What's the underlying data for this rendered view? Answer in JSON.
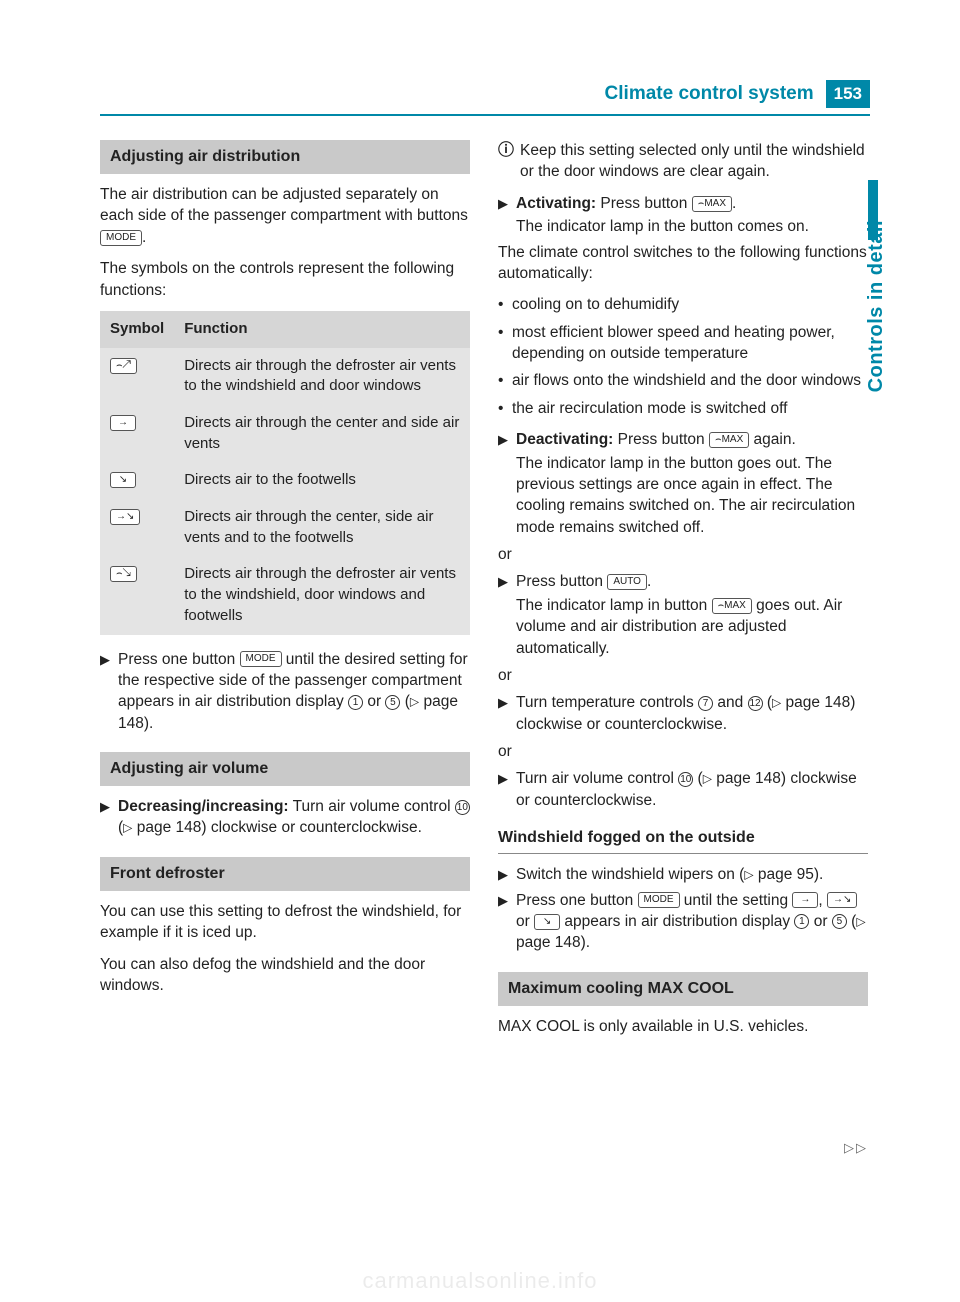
{
  "header": {
    "title": "Climate control system",
    "page_number": "153"
  },
  "side_tab": "Controls in detail",
  "watermark": "carmanualsonline.info",
  "continue_marker": "▷▷",
  "colors": {
    "accent": "#0088a8",
    "section_bg": "#c9c9c9",
    "table_bg": "#e4e4e4",
    "table_header_bg": "#d6d6d6",
    "text": "#222222",
    "page_bg": "#ffffff"
  },
  "icons": {
    "mode": "MODE",
    "auto": "AUTO",
    "defrost_max": "⌢MAX",
    "defrost_windows": "⌢↗",
    "center_side": "→",
    "footwell": "↘",
    "center_footwell": "→↘",
    "defrost_all": "⌢↘"
  },
  "left": {
    "s1": {
      "heading": "Adjusting air distribution",
      "p1": "The air distribution can be adjusted separately on each side of the passenger compartment with buttons ",
      "p1_after": ".",
      "p2": "The symbols on the controls represent the following functions:",
      "table": {
        "h1": "Symbol",
        "h2": "Function",
        "rows": [
          {
            "sym_key": "defrost_windows",
            "fn": "Directs air through the defroster air vents to the windshield and door windows"
          },
          {
            "sym_key": "center_side",
            "fn": "Directs air through the center and side air vents"
          },
          {
            "sym_key": "footwell",
            "fn": "Directs air to the footwells"
          },
          {
            "sym_key": "center_footwell",
            "fn": "Directs air through the center, side air vents and to the footwells"
          },
          {
            "sym_key": "defrost_all",
            "fn": "Directs air through the defroster air vents to the windshield, door windows and footwells"
          }
        ]
      },
      "step1a": "Press one button ",
      "step1b": " until the desired setting for the respective side of the passenger compartment appears in air distribution display ",
      "c1": "1",
      "mid": " or ",
      "c5": "5",
      "step1c": " (",
      "tri": "▷",
      "pg148": " page 148)."
    },
    "s2": {
      "heading": "Adjusting air volume",
      "bold": "Decreasing/increasing:",
      "text1": " Turn air volume control ",
      "c10": "10",
      "text2": " (",
      "pg": " page 148) clockwise or counterclockwise."
    },
    "s3": {
      "heading": "Front defroster",
      "p1": "You can use this setting to defrost the windshield, for example if it is iced up.",
      "p2": "You can also defog the windshield and the door windows."
    }
  },
  "right": {
    "info": "Keep this setting selected only until the windshield or the door windows are clear again.",
    "act": {
      "bold": "Activating:",
      "t1": " Press button ",
      "t2": ".",
      "sub": "The indicator lamp in the button comes on."
    },
    "auto_intro": "The climate control switches to the following functions automatically:",
    "bullets": [
      "cooling on to dehumidify",
      "most efficient blower speed and heating power, depending on outside temperature",
      "air flows onto the windshield and the door windows",
      "the air recirculation mode is switched off"
    ],
    "deact": {
      "bold": "Deactivating:",
      "t1": " Press button ",
      "t2": " again.",
      "sub": "The indicator lamp in the button goes out. The previous settings are once again in effect. The cooling remains switched on. The air recirculation mode remains switched off."
    },
    "or": "or",
    "auto_step": {
      "t1": "Press button ",
      "t2": ".",
      "sub1": "The indicator lamp in button ",
      "sub2": " goes out. Air volume and air distribution are adjusted automatically."
    },
    "temp_step": {
      "t1": "Turn temperature controls ",
      "c7": "7",
      "and": " and ",
      "c12": "12",
      "t2": " (",
      "pg": " page 148) clockwise or counterclockwise."
    },
    "vol_step": {
      "t1": "Turn air volume control ",
      "c10": "10",
      "t2": " (",
      "pg": " page 148) clockwise or counterclockwise."
    },
    "sub": {
      "heading": "Windshield fogged on the outside",
      "s1a": "Switch the windshield wipers on (",
      "s1pg": " page 95).",
      "s2a": "Press one button ",
      "s2b": " until the setting ",
      "comma": ", ",
      "s2or": " or ",
      "s2c": " appears in air distribution display ",
      "c1": "1",
      "mid": " or ",
      "c5": "5",
      "s2d": " (",
      "pg": " page 148)."
    },
    "s_max": {
      "heading": "Maximum cooling MAX COOL",
      "p": "MAX COOL is only available in U.S. vehicles."
    }
  }
}
